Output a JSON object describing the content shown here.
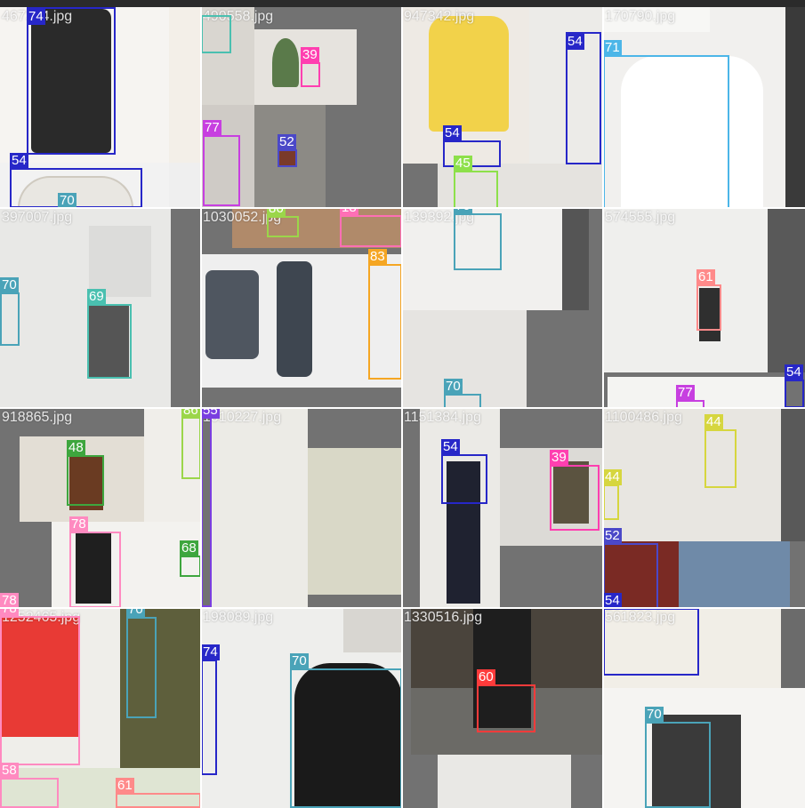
{
  "tiles": [
    {
      "filename": "467374.jpg",
      "boxes": [
        {
          "label": "74",
          "color": "#2727c8"
        },
        {
          "label": "54",
          "color": "#2727c8"
        },
        {
          "label": "70",
          "color": "#4aa3b8"
        }
      ]
    },
    {
      "filename": "490558.jpg",
      "boxes": [
        {
          "label": "39",
          "color": "#ff3fb0"
        },
        {
          "label": "77",
          "color": "#c73fe0"
        },
        {
          "label": "52",
          "color": "#4b48c8"
        },
        {
          "label": "86",
          "color": "#9bd64a"
        },
        {
          "label": "18",
          "color": "#ff6fb5"
        }
      ]
    },
    {
      "filename": "947342.jpg",
      "boxes": [
        {
          "label": "54",
          "color": "#2727c8"
        },
        {
          "label": "54",
          "color": "#2727c8"
        },
        {
          "label": "45",
          "color": "#8de04a"
        },
        {
          "label": "70",
          "color": "#4aa3b8"
        }
      ]
    },
    {
      "filename": "170790.jpg",
      "boxes": [
        {
          "label": "71",
          "color": "#4cb6e8"
        }
      ]
    },
    {
      "filename": "397007.jpg",
      "boxes": [
        {
          "label": "70",
          "color": "#4aa3b8"
        },
        {
          "label": "69",
          "color": "#4ac0b0"
        }
      ]
    },
    {
      "filename": "1030052.jpg",
      "boxes": [
        {
          "label": "83",
          "color": "#f5a623"
        }
      ]
    },
    {
      "filename": "139392.jpg",
      "boxes": [
        {
          "label": "70",
          "color": "#4aa3b8"
        }
      ]
    },
    {
      "filename": "574555.jpg",
      "boxes": [
        {
          "label": "61",
          "color": "#ff8a8a"
        },
        {
          "label": "54",
          "color": "#2727c8"
        },
        {
          "label": "77",
          "color": "#c73fe0"
        }
      ]
    },
    {
      "filename": "918865.jpg",
      "boxes": [
        {
          "label": "86",
          "color": "#9bd64a"
        },
        {
          "label": "48",
          "color": "#3ea63e"
        },
        {
          "label": "78",
          "color": "#ff8ac0"
        },
        {
          "label": "68",
          "color": "#3ea63e"
        },
        {
          "label": "78",
          "color": "#ff8ac0"
        }
      ]
    },
    {
      "filename": "1010227.jpg",
      "boxes": [
        {
          "label": "55",
          "color": "#7a3fe0"
        }
      ]
    },
    {
      "filename": "1151384.jpg",
      "boxes": [
        {
          "label": "54",
          "color": "#2727c8"
        },
        {
          "label": "39",
          "color": "#ff3fb0"
        }
      ]
    },
    {
      "filename": "1100486.jpg",
      "boxes": [
        {
          "label": "44",
          "color": "#d6d63f"
        },
        {
          "label": "44",
          "color": "#d6d63f"
        },
        {
          "label": "52",
          "color": "#4b48c8"
        },
        {
          "label": "54",
          "color": "#2727c8"
        }
      ]
    },
    {
      "filename": "1252465.jpg",
      "boxes": [
        {
          "label": "70",
          "color": "#4aa3b8"
        },
        {
          "label": "58",
          "color": "#ff8ac0"
        }
      ]
    },
    {
      "filename": "198089.jpg",
      "boxes": [
        {
          "label": "74",
          "color": "#2727c8"
        },
        {
          "label": "70",
          "color": "#4aa3b8"
        }
      ]
    },
    {
      "filename": "1330516.jpg",
      "boxes": [
        {
          "label": "60",
          "color": "#ff3b3b"
        }
      ]
    },
    {
      "filename": "561823.jpg",
      "boxes": [
        {
          "label": "54",
          "color": "#2727c8"
        },
        {
          "label": "70",
          "color": "#4aa3b8"
        }
      ]
    }
  ],
  "extra_boxes": [
    {
      "label": "61",
      "color": "#ff8a8a"
    }
  ]
}
